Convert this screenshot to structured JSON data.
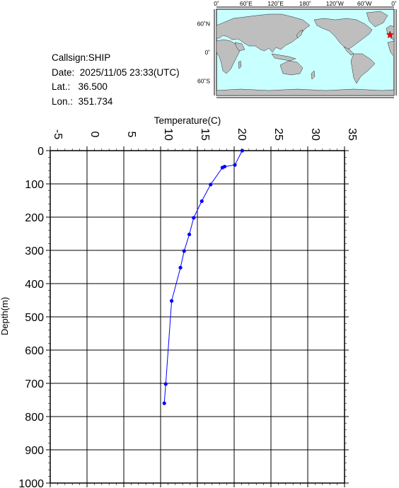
{
  "station": {
    "callsign_label": "Callsign:",
    "callsign": "SHIP",
    "date_label": "Date:",
    "date": "2025/11/05 23:33(UTC)",
    "lat_label": "Lat.:",
    "lat": "36.500",
    "lon_label": "Lon.:",
    "lon": "351.734"
  },
  "map": {
    "top_ticks": [
      "0˚",
      "60˚E",
      "120˚E",
      "180˚",
      "120˚W",
      "60˚W",
      "0˚"
    ],
    "side_ticks": [
      "60˚N",
      "0˚",
      "60˚S"
    ],
    "ocean_color": "#c8ffff",
    "land_color": "#bebebe",
    "marker_color": "#ff0000",
    "marker_lat": 36.5,
    "marker_lon": 351.734
  },
  "chart_data": {
    "type": "line",
    "xlabel": "Temperature(C)",
    "ylabel": "Depth(m)",
    "xlim": [
      -5,
      35
    ],
    "ylim": [
      0,
      1000
    ],
    "y_inverted": true,
    "x_ticks": [
      "-5",
      "0",
      "5",
      "10",
      "15",
      "20",
      "25",
      "30",
      "35"
    ],
    "y_ticks": [
      "0",
      "100",
      "200",
      "300",
      "400",
      "500",
      "600",
      "700",
      "800",
      "900",
      "1000"
    ],
    "grid": true,
    "line_color": "#0000ff",
    "points": [
      {
        "temp": 21.1,
        "depth": 0
      },
      {
        "temp": 20.1,
        "depth": 43
      },
      {
        "temp": 18.7,
        "depth": 48
      },
      {
        "temp": 18.4,
        "depth": 51
      },
      {
        "temp": 16.8,
        "depth": 102
      },
      {
        "temp": 15.6,
        "depth": 152
      },
      {
        "temp": 14.5,
        "depth": 202
      },
      {
        "temp": 13.9,
        "depth": 252
      },
      {
        "temp": 13.2,
        "depth": 302
      },
      {
        "temp": 12.7,
        "depth": 352
      },
      {
        "temp": 11.5,
        "depth": 452
      },
      {
        "temp": 10.7,
        "depth": 702
      },
      {
        "temp": 10.5,
        "depth": 760
      }
    ]
  }
}
